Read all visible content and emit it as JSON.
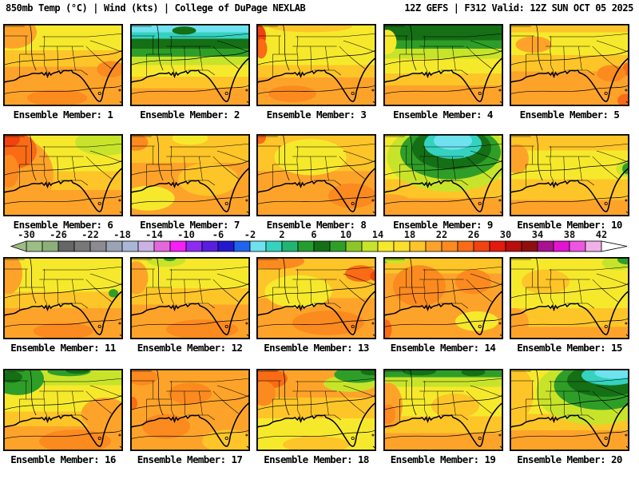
{
  "header": {
    "left": "850mb Temp (°C) | Wind (kts) | College of DuPage NEXLAB",
    "right": "12Z GEFS | F312 Valid: 12Z SUN OCT 05 2025"
  },
  "product": {
    "field": "850mb Temperature (°C) and Wind (kts)",
    "model": "GEFS",
    "run": "12Z",
    "forecast_hour": "F312",
    "valid": "12Z SUN OCT 05 2025",
    "source": "College of DuPage NEXLAB"
  },
  "palette": {
    "Y": "#f6e92c",
    "GO": "#fdc528",
    "O": "#fda32a",
    "DO": "#fb8a1f",
    "RO": "#f96b15",
    "R": "#f04310",
    "YG": "#c8e42a",
    "LG": "#8cc727",
    "G": "#2f9e28",
    "DG": "#156f15",
    "T": "#35d2bf",
    "C": "#6ee2ee"
  },
  "colorbar": {
    "title": "850mb temperature scale (°C)",
    "min": -30,
    "max": 42,
    "tick_step": 4,
    "segment_step": 2,
    "ticks": [
      "-30",
      "-26",
      "-22",
      "-18",
      "-14",
      "-10",
      "-6",
      "-2",
      "2",
      "6",
      "10",
      "14",
      "18",
      "22",
      "26",
      "30",
      "34",
      "38",
      "42"
    ],
    "left_arrow_color": "#9cbd85",
    "right_arrow_color": "#ffffff",
    "segment_colors": [
      "#9cbd85",
      "#8cb077",
      "#666666",
      "#787878",
      "#8b8b91",
      "#9ba3b4",
      "#aab6d6",
      "#cbb2e4",
      "#e468dc",
      "#f71ef7",
      "#8d2cf0",
      "#5a1ede",
      "#2418ce",
      "#2064ee",
      "#6ee2ee",
      "#35d2bf",
      "#21b573",
      "#239e2e",
      "#147014",
      "#2f9e28",
      "#8cc727",
      "#c8e42a",
      "#f6e92c",
      "#fbe02a",
      "#fdc528",
      "#fda32a",
      "#fb8a1f",
      "#f96b15",
      "#f04310",
      "#e31b0e",
      "#b80f0c",
      "#8e0f0f",
      "#a8128e",
      "#e214d2",
      "#ee55e2",
      "#f0b0e8"
    ]
  },
  "members": [
    {
      "n": 1,
      "label": "Ensemble Member: 1",
      "bands": [
        [
          "Y",
          0.32
        ],
        [
          "GO",
          0.52
        ],
        [
          "O",
          1
        ]
      ],
      "blobs": [
        [
          "O",
          0.08,
          0.1,
          0.2,
          0.2
        ],
        [
          "DO",
          0.45,
          0.9,
          0.25,
          0.1
        ],
        [
          "DO",
          0.9,
          0.55,
          0.12,
          0.1
        ]
      ]
    },
    {
      "n": 2,
      "label": "Ensemble Member: 2",
      "bands": [
        [
          "C",
          0.1
        ],
        [
          "T",
          0.18
        ],
        [
          "DG",
          0.3
        ],
        [
          "G",
          0.4
        ],
        [
          "YG",
          0.5
        ],
        [
          "Y",
          0.64
        ],
        [
          "GO",
          0.78
        ],
        [
          "O",
          1
        ]
      ],
      "blobs": [
        [
          "DG",
          0.45,
          0.08,
          0.1,
          0.05
        ]
      ]
    },
    {
      "n": 3,
      "label": "Ensemble Member: 3",
      "bands": [
        [
          "Y",
          0.5
        ],
        [
          "GO",
          0.65
        ],
        [
          "O",
          1
        ]
      ],
      "blobs": [
        [
          "GO",
          0.45,
          0.03,
          0.35,
          0.07
        ],
        [
          "R",
          0.02,
          0.15,
          0.06,
          0.14
        ],
        [
          "RO",
          0.04,
          0.3,
          0.05,
          0.12
        ],
        [
          "DO",
          0.3,
          0.85,
          0.2,
          0.1
        ]
      ]
    },
    {
      "n": 4,
      "label": "Ensemble Member: 4",
      "bands": [
        [
          "DG",
          0.2
        ],
        [
          "G",
          0.3
        ],
        [
          "YG",
          0.42
        ],
        [
          "Y",
          0.6
        ],
        [
          "GO",
          0.75
        ],
        [
          "O",
          1
        ]
      ],
      "blobs": [
        [
          "Y",
          0.03,
          0.22,
          0.08,
          0.15
        ],
        [
          "DG",
          0.75,
          0.1,
          0.18,
          0.1
        ]
      ]
    },
    {
      "n": 5,
      "label": "Ensemble Member: 5",
      "bands": [
        [
          "GO",
          0.1
        ],
        [
          "Y",
          0.38
        ],
        [
          "GO",
          0.58
        ],
        [
          "O",
          1
        ]
      ],
      "blobs": [
        [
          "O",
          0.2,
          0.25,
          0.15,
          0.1
        ],
        [
          "RO",
          0.99,
          0.55,
          0.05,
          0.08
        ],
        [
          "RO",
          0.97,
          0.93,
          0.07,
          0.08
        ],
        [
          "DO",
          0.85,
          0.6,
          0.12,
          0.1
        ]
      ]
    },
    {
      "n": 6,
      "label": "Ensemble Member: 6",
      "bands": [
        [
          "Y",
          0.45
        ],
        [
          "GO",
          0.68
        ],
        [
          "O",
          1
        ]
      ],
      "blobs": [
        [
          "YG",
          0.85,
          0.1,
          0.25,
          0.16
        ],
        [
          "O",
          0.12,
          0.5,
          0.3,
          0.45
        ],
        [
          "RO",
          0.1,
          0.2,
          0.18,
          0.22
        ],
        [
          "R",
          0.04,
          0.06,
          0.1,
          0.1
        ],
        [
          "DO",
          0.05,
          0.45,
          0.08,
          0.2
        ]
      ]
    },
    {
      "n": 7,
      "label": "Ensemble Member: 7",
      "bands": [
        [
          "GO",
          0.35
        ],
        [
          "O",
          1
        ]
      ],
      "blobs": [
        [
          "Y",
          0.5,
          0.05,
          0.15,
          0.08
        ],
        [
          "Y",
          0.15,
          0.78,
          0.22,
          0.15
        ],
        [
          "GO",
          0.65,
          0.55,
          0.25,
          0.2
        ],
        [
          "DO",
          0.05,
          0.1,
          0.1,
          0.1
        ]
      ]
    },
    {
      "n": 8,
      "label": "Ensemble Member: 8",
      "bands": [
        [
          "GO",
          0.45
        ],
        [
          "O",
          1
        ]
      ],
      "blobs": [
        [
          "RO",
          0.02,
          0.04,
          0.06,
          0.08
        ],
        [
          "Y",
          0.45,
          0.28,
          0.3,
          0.22
        ],
        [
          "DO",
          0.8,
          0.75,
          0.2,
          0.15
        ]
      ]
    },
    {
      "n": 9,
      "label": "Ensemble Member: 9",
      "bands": [
        [
          "Y",
          0.55
        ],
        [
          "GO",
          0.78
        ],
        [
          "O",
          1
        ]
      ],
      "blobs": [
        [
          "YG",
          0.55,
          0.28,
          0.52,
          0.42
        ],
        [
          "G",
          0.56,
          0.22,
          0.42,
          0.33
        ],
        [
          "DG",
          0.57,
          0.17,
          0.33,
          0.26
        ],
        [
          "T",
          0.58,
          0.12,
          0.24,
          0.18
        ],
        [
          "C",
          0.58,
          0.08,
          0.16,
          0.11
        ],
        [
          "O",
          0.05,
          0.85,
          0.2,
          0.12
        ]
      ]
    },
    {
      "n": 10,
      "label": "Ensemble Member: 10",
      "bands": [
        [
          "GO",
          0.2
        ],
        [
          "Y",
          0.55
        ],
        [
          "GO",
          0.8
        ],
        [
          "O",
          1
        ]
      ],
      "blobs": [
        [
          "YG",
          0.97,
          0.42,
          0.08,
          0.1
        ],
        [
          "G",
          0.99,
          0.42,
          0.05,
          0.07
        ],
        [
          "O",
          0.06,
          0.3,
          0.1,
          0.18
        ]
      ]
    },
    {
      "n": 11,
      "label": "Ensemble Member: 11",
      "bands": [
        [
          "Y",
          0.42
        ],
        [
          "GO",
          0.62
        ],
        [
          "O",
          1
        ]
      ],
      "blobs": [
        [
          "G",
          0.92,
          0.44,
          0.04,
          0.05
        ],
        [
          "O",
          0.04,
          0.2,
          0.12,
          0.25
        ],
        [
          "DO",
          0.5,
          0.9,
          0.25,
          0.1
        ]
      ]
    },
    {
      "n": 12,
      "label": "Ensemble Member: 12",
      "bands": [
        [
          "Y",
          0.38
        ],
        [
          "GO",
          0.58
        ],
        [
          "O",
          1
        ]
      ],
      "blobs": [
        [
          "YG",
          0.3,
          0.04,
          0.16,
          0.08
        ],
        [
          "G",
          0.33,
          0.02,
          0.05,
          0.03
        ],
        [
          "DO",
          0.6,
          0.88,
          0.3,
          0.12
        ],
        [
          "O",
          0.05,
          0.25,
          0.1,
          0.2
        ]
      ]
    },
    {
      "n": 13,
      "label": "Ensemble Member: 13",
      "bands": [
        [
          "GO",
          0.5
        ],
        [
          "O",
          1
        ]
      ],
      "blobs": [
        [
          "DO",
          0.15,
          0.05,
          0.25,
          0.1
        ],
        [
          "RO",
          0.87,
          0.2,
          0.13,
          0.1
        ],
        [
          "R",
          0.99,
          0.23,
          0.04,
          0.06
        ],
        [
          "Y",
          0.35,
          0.42,
          0.28,
          0.2
        ],
        [
          "DO",
          0.6,
          0.8,
          0.3,
          0.15
        ]
      ]
    },
    {
      "n": 14,
      "label": "Ensemble Member: 14",
      "bands": [
        [
          "GO",
          0.2
        ],
        [
          "O",
          1
        ]
      ],
      "blobs": [
        [
          "G",
          0.02,
          0.02,
          0.07,
          0.05
        ],
        [
          "YG",
          0.1,
          0.03,
          0.1,
          0.05
        ],
        [
          "RO",
          0.02,
          0.88,
          0.05,
          0.12
        ],
        [
          "Y",
          0.78,
          0.78,
          0.18,
          0.12
        ],
        [
          "DO",
          0.3,
          0.35,
          0.22,
          0.25
        ],
        [
          "DO",
          0.75,
          0.3,
          0.15,
          0.15
        ]
      ]
    },
    {
      "n": 15,
      "label": "Ensemble Member: 15",
      "bands": [
        [
          "Y",
          0.62
        ],
        [
          "GO",
          0.85
        ],
        [
          "O",
          1
        ]
      ],
      "blobs": [
        [
          "YG",
          0.9,
          0.07,
          0.13,
          0.09
        ],
        [
          "G",
          0.98,
          0.03,
          0.08,
          0.06
        ],
        [
          "GO",
          0.3,
          0.3,
          0.2,
          0.15
        ],
        [
          "O",
          0.04,
          0.8,
          0.12,
          0.18
        ]
      ]
    },
    {
      "n": 16,
      "label": "Ensemble Member: 16",
      "bands": [
        [
          "YG",
          0.2
        ],
        [
          "Y",
          0.52
        ],
        [
          "GO",
          0.7
        ],
        [
          "O",
          1
        ]
      ],
      "blobs": [
        [
          "G",
          0.12,
          0.12,
          0.22,
          0.2
        ],
        [
          "DG",
          0.07,
          0.1,
          0.09,
          0.07
        ],
        [
          "G",
          0.55,
          0.03,
          0.18,
          0.06
        ],
        [
          "DG",
          0.62,
          0.02,
          0.1,
          0.04
        ],
        [
          "DO",
          0.6,
          0.88,
          0.3,
          0.14
        ],
        [
          "O",
          0.85,
          0.55,
          0.2,
          0.2
        ]
      ]
    },
    {
      "n": 17,
      "label": "Ensemble Member: 17",
      "bands": [
        [
          "O",
          1
        ]
      ],
      "blobs": [
        [
          "DO",
          0.1,
          0.1,
          0.13,
          0.1
        ],
        [
          "DO",
          0.5,
          0.3,
          0.18,
          0.13
        ],
        [
          "GO",
          0.82,
          0.88,
          0.22,
          0.14
        ],
        [
          "RO",
          0.02,
          0.42,
          0.04,
          0.08
        ],
        [
          "DO",
          0.3,
          0.7,
          0.2,
          0.15
        ]
      ]
    },
    {
      "n": 18,
      "label": "Ensemble Member: 18",
      "bands": [
        [
          "O",
          0.35
        ],
        [
          "GO",
          0.6
        ],
        [
          "Y",
          1
        ]
      ],
      "blobs": [
        [
          "R",
          0.05,
          0.05,
          0.1,
          0.08
        ],
        [
          "RO",
          0.1,
          0.12,
          0.16,
          0.12
        ],
        [
          "YG",
          0.78,
          0.18,
          0.22,
          0.1
        ],
        [
          "G",
          0.85,
          0.07,
          0.2,
          0.1
        ],
        [
          "DG",
          0.96,
          0.03,
          0.09,
          0.05
        ],
        [
          "GO",
          0.5,
          0.92,
          0.28,
          0.1
        ],
        [
          "DO",
          0.06,
          0.3,
          0.1,
          0.15
        ]
      ]
    },
    {
      "n": 19,
      "label": "Ensemble Member: 19",
      "bands": [
        [
          "G",
          0.1
        ],
        [
          "YG",
          0.22
        ],
        [
          "Y",
          0.58
        ],
        [
          "GO",
          0.78
        ],
        [
          "O",
          1
        ]
      ],
      "blobs": [
        [
          "DG",
          0.3,
          0.03,
          0.14,
          0.05
        ],
        [
          "DG",
          0.75,
          0.04,
          0.1,
          0.05
        ],
        [
          "O",
          0.04,
          0.45,
          0.12,
          0.28
        ],
        [
          "DO",
          0.04,
          0.55,
          0.06,
          0.12
        ],
        [
          "GO",
          0.6,
          0.45,
          0.2,
          0.15
        ]
      ]
    },
    {
      "n": 20,
      "label": "Ensemble Member: 20",
      "bands": [
        [
          "Y",
          0.55
        ],
        [
          "GO",
          0.75
        ],
        [
          "O",
          1
        ]
      ],
      "blobs": [
        [
          "YG",
          0.72,
          0.28,
          0.5,
          0.4
        ],
        [
          "G",
          0.77,
          0.2,
          0.4,
          0.3
        ],
        [
          "DG",
          0.8,
          0.14,
          0.32,
          0.2
        ],
        [
          "T",
          0.84,
          0.08,
          0.24,
          0.12
        ],
        [
          "C",
          0.87,
          0.05,
          0.16,
          0.07
        ],
        [
          "GO",
          0.08,
          0.3,
          0.12,
          0.3
        ]
      ]
    }
  ]
}
